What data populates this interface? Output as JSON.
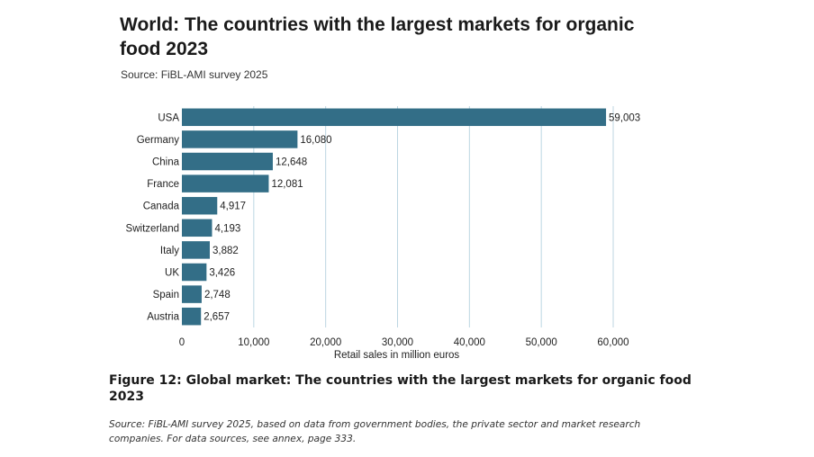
{
  "chart_data": {
    "type": "bar",
    "orientation": "horizontal",
    "title": "World: The countries with the largest markets for organic food 2023",
    "subtitle": "Source: FiBL-AMI survey 2025",
    "xlabel": "Retail sales in million euros",
    "ylabel": "",
    "xlim": [
      0,
      60000
    ],
    "x_ticks": [
      0,
      10000,
      20000,
      30000,
      40000,
      50000,
      60000
    ],
    "x_tick_labels": [
      "0",
      "10,000",
      "20,000",
      "30,000",
      "40,000",
      "50,000",
      "60,000"
    ],
    "grid": true,
    "categories": [
      "USA",
      "Germany",
      "China",
      "France",
      "Canada",
      "Switzerland",
      "Italy",
      "UK",
      "Spain",
      "Austria"
    ],
    "values": [
      59003,
      16080,
      12648,
      12081,
      4917,
      4193,
      3882,
      3426,
      2748,
      2657
    ],
    "value_labels": [
      "59,003",
      "16,080",
      "12,648",
      "12,081",
      "4,917",
      "4,193",
      "3,882",
      "3,426",
      "2,748",
      "2,657"
    ],
    "bar_color": "#336e87",
    "grid_color": "#bcd6e2"
  },
  "figure": {
    "caption": "Figure 12: Global market: The countries with the largest markets for organic food 2023",
    "note": "Source: FiBL-AMI survey 2025, based on data from government bodies, the private sector and market research companies. For data sources, see annex, page 333."
  }
}
